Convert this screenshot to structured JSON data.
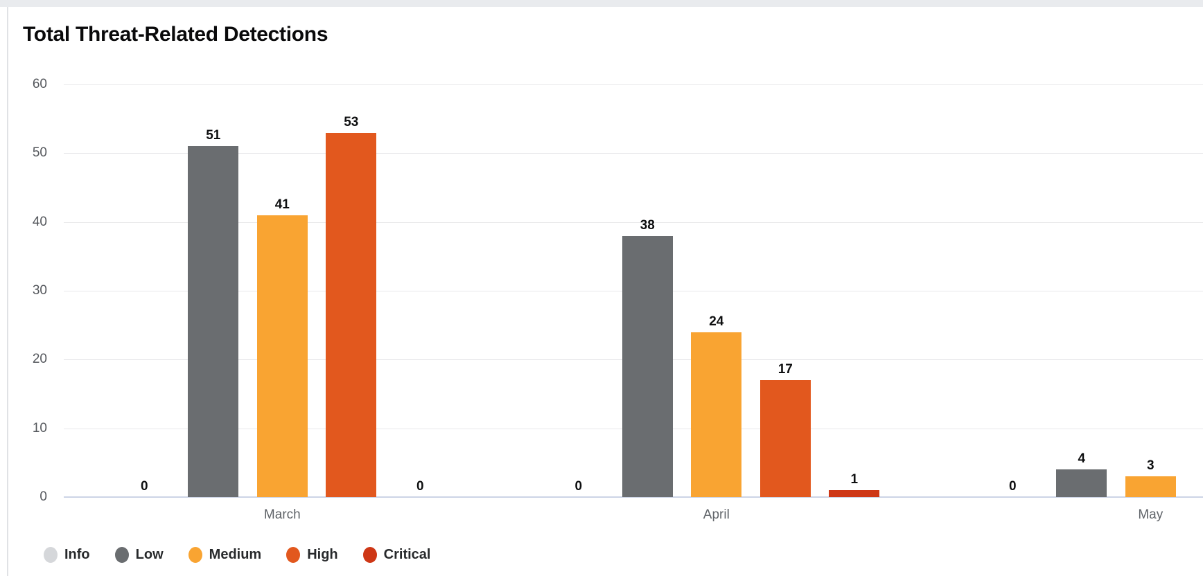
{
  "page": {
    "title": "Total Threat-Related Detections"
  },
  "chart_data": {
    "type": "bar",
    "title": "Total Threat-Related Detections",
    "categories": [
      "March",
      "April",
      "May"
    ],
    "series": [
      {
        "name": "Info",
        "color": "#d5d7da",
        "values": [
          0,
          0,
          0
        ]
      },
      {
        "name": "Low",
        "color": "#6a6d70",
        "values": [
          51,
          38,
          4
        ]
      },
      {
        "name": "Medium",
        "color": "#f9a432",
        "values": [
          41,
          24,
          3
        ]
      },
      {
        "name": "High",
        "color": "#e2581e",
        "values": [
          53,
          17,
          null
        ]
      },
      {
        "name": "Critical",
        "color": "#ce3716",
        "values": [
          0,
          1,
          null
        ]
      }
    ],
    "ylim": [
      0,
      60
    ],
    "yticks": [
      0,
      10,
      20,
      30,
      40,
      50,
      60
    ],
    "grid": true,
    "value_labels": true,
    "legend_position": "bottom",
    "clipped_at_right": true
  }
}
